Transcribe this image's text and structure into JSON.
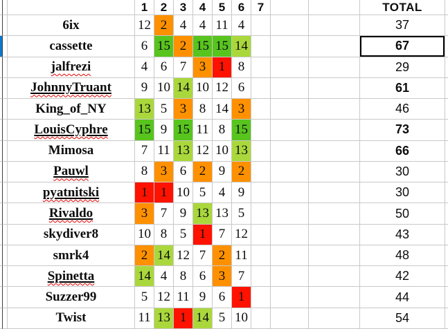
{
  "colors": {
    "red": "#FF1300",
    "orange": "#FF9100",
    "green": "#58C41E",
    "light_green": "#AAD83C",
    "marker_blue": "#0B79D0",
    "selection_border": "#000000"
  },
  "header": {
    "weeks": [
      "1",
      "2",
      "3",
      "4",
      "5",
      "6",
      "7"
    ],
    "total_label": "TOTAL"
  },
  "rows": [
    {
      "name": "6ix",
      "underline": false,
      "squiggle": false,
      "marker": false,
      "selected": false,
      "scores": [
        "12",
        "2",
        "4",
        "4",
        "11",
        "4",
        ""
      ],
      "fills": [
        "",
        "orange",
        "",
        "",
        "",
        "",
        ""
      ],
      "total": "37",
      "total_bold": false
    },
    {
      "name": "cassette",
      "underline": false,
      "squiggle": false,
      "marker": true,
      "selected": true,
      "scores": [
        "6",
        "15",
        "2",
        "15",
        "15",
        "14",
        ""
      ],
      "fills": [
        "",
        "green",
        "orange",
        "green",
        "green",
        "light_green",
        ""
      ],
      "total": "67",
      "total_bold": true
    },
    {
      "name": "jalfrezi",
      "underline": false,
      "squiggle": true,
      "marker": false,
      "selected": false,
      "scores": [
        "4",
        "6",
        "7",
        "3",
        "1",
        "8",
        ""
      ],
      "fills": [
        "",
        "",
        "",
        "orange",
        "red",
        "",
        ""
      ],
      "total": "29",
      "total_bold": false
    },
    {
      "name": "JohnnyTruant",
      "underline": true,
      "squiggle": true,
      "marker": false,
      "selected": false,
      "scores": [
        "9",
        "10",
        "14",
        "10",
        "12",
        "6",
        ""
      ],
      "fills": [
        "",
        "",
        "light_green",
        "",
        "",
        "",
        ""
      ],
      "total": "61",
      "total_bold": true
    },
    {
      "name": "King_of_NY",
      "underline": false,
      "squiggle": false,
      "marker": false,
      "selected": false,
      "scores": [
        "13",
        "5",
        "3",
        "8",
        "14",
        "3",
        ""
      ],
      "fills": [
        "light_green",
        "",
        "orange",
        "",
        "",
        "orange",
        ""
      ],
      "total": "46",
      "total_bold": false
    },
    {
      "name": "LouisCyphre",
      "underline": true,
      "squiggle": true,
      "marker": false,
      "selected": false,
      "scores": [
        "15",
        "9",
        "15",
        "11",
        "8",
        "15",
        ""
      ],
      "fills": [
        "green",
        "",
        "green",
        "",
        "",
        "green",
        ""
      ],
      "total": "73",
      "total_bold": true
    },
    {
      "name": "Mimosa",
      "underline": false,
      "squiggle": false,
      "marker": false,
      "selected": false,
      "scores": [
        "7",
        "11",
        "13",
        "12",
        "10",
        "13",
        ""
      ],
      "fills": [
        "",
        "",
        "light_green",
        "",
        "",
        "light_green",
        ""
      ],
      "total": "66",
      "total_bold": true
    },
    {
      "name": "Pauwl",
      "underline": true,
      "squiggle": true,
      "marker": false,
      "selected": false,
      "scores": [
        "8",
        "3",
        "6",
        "2",
        "9",
        "2",
        ""
      ],
      "fills": [
        "",
        "orange",
        "",
        "orange",
        "",
        "orange",
        ""
      ],
      "total": "30",
      "total_bold": false
    },
    {
      "name": "pyatnitski",
      "underline": true,
      "squiggle": true,
      "marker": false,
      "selected": false,
      "scores": [
        "1",
        "1",
        "10",
        "5",
        "4",
        "9",
        ""
      ],
      "fills": [
        "red",
        "red",
        "",
        "",
        "",
        "",
        ""
      ],
      "total": "30",
      "total_bold": false
    },
    {
      "name": "Rivaldo",
      "underline": true,
      "squiggle": true,
      "marker": false,
      "selected": false,
      "scores": [
        "3",
        "7",
        "9",
        "13",
        "13",
        "5",
        ""
      ],
      "fills": [
        "orange",
        "",
        "",
        "light_green",
        "",
        "",
        ""
      ],
      "total": "50",
      "total_bold": false
    },
    {
      "name": "skydiver8",
      "underline": false,
      "squiggle": false,
      "marker": false,
      "selected": false,
      "scores": [
        "10",
        "8",
        "5",
        "1",
        "7",
        "12",
        ""
      ],
      "fills": [
        "",
        "",
        "",
        "red",
        "",
        "",
        ""
      ],
      "total": "43",
      "total_bold": false
    },
    {
      "name": "smrk4",
      "underline": false,
      "squiggle": false,
      "marker": false,
      "selected": false,
      "scores": [
        "2",
        "14",
        "12",
        "7",
        "2",
        "11",
        ""
      ],
      "fills": [
        "orange",
        "light_green",
        "",
        "",
        "orange",
        "",
        ""
      ],
      "total": "48",
      "total_bold": false
    },
    {
      "name": "Spinetta",
      "underline": true,
      "squiggle": true,
      "marker": false,
      "selected": false,
      "scores": [
        "14",
        "4",
        "8",
        "6",
        "3",
        "7",
        ""
      ],
      "fills": [
        "light_green",
        "",
        "",
        "",
        "orange",
        "",
        ""
      ],
      "total": "42",
      "total_bold": false
    },
    {
      "name": "Suzzer99",
      "underline": false,
      "squiggle": false,
      "marker": false,
      "selected": false,
      "scores": [
        "5",
        "12",
        "11",
        "9",
        "6",
        "1",
        ""
      ],
      "fills": [
        "",
        "",
        "",
        "",
        "",
        "red",
        ""
      ],
      "total": "44",
      "total_bold": false
    },
    {
      "name": "Twist",
      "underline": false,
      "squiggle": false,
      "marker": false,
      "selected": false,
      "scores": [
        "11",
        "13",
        "1",
        "14",
        "5",
        "10",
        ""
      ],
      "fills": [
        "",
        "light_green",
        "red",
        "light_green",
        "",
        "",
        ""
      ],
      "total": "54",
      "total_bold": false
    }
  ]
}
